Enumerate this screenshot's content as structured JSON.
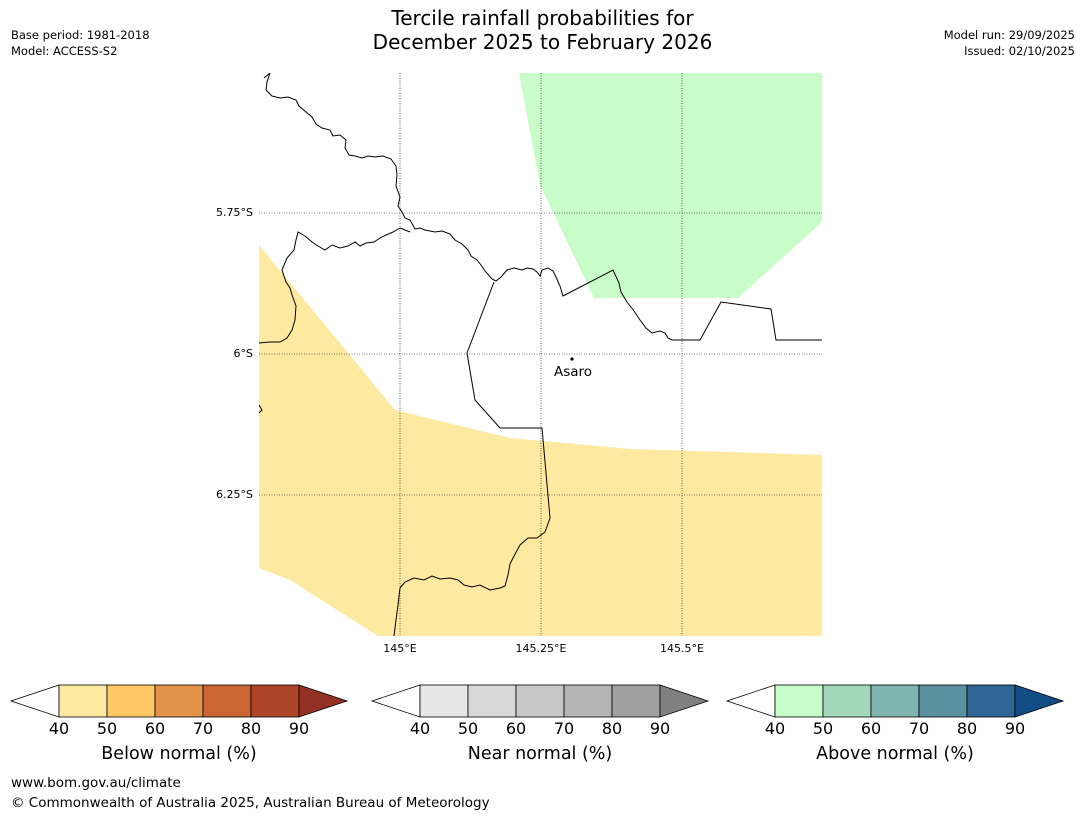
{
  "title": {
    "line1": "Tercile rainfall probabilities for",
    "line2": "December 2025 to February 2026"
  },
  "meta": {
    "base_period": "Base period: 1981-2018",
    "model": "Model: ACCESS-S2",
    "model_run": "Model run: 29/09/2025",
    "issued": "Issued: 02/10/2025"
  },
  "map": {
    "lat_ticks": [
      "5.75°S",
      "6°S",
      "6.25°S"
    ],
    "lon_ticks": [
      "145°E",
      "145.25°E",
      "145.5°E"
    ],
    "place": {
      "name": "Asaro"
    }
  },
  "colorbars": {
    "ticks": [
      "40",
      "50",
      "60",
      "70",
      "80",
      "90"
    ],
    "below": {
      "label": "Below normal (%)",
      "colors": [
        "#fee9a0",
        "#fec965",
        "#e3924a",
        "#cc6534",
        "#af4528",
        "#933224"
      ]
    },
    "near": {
      "label": "Near normal (%)",
      "colors": [
        "#e6e6e6",
        "#d8d8d8",
        "#c8c8c8",
        "#b4b4b4",
        "#a0a0a0",
        "#808080"
      ]
    },
    "above": {
      "label": "Above normal (%)",
      "colors": [
        "#c8fcc8",
        "#a4d8bb",
        "#80b4b0",
        "#5a91a0",
        "#2e6595",
        "#134d85"
      ]
    }
  },
  "footer": {
    "url": "www.bom.gov.au/climate",
    "copyright": "© Commonwealth of Australia 2025, Australian Bureau of Meteorology"
  }
}
